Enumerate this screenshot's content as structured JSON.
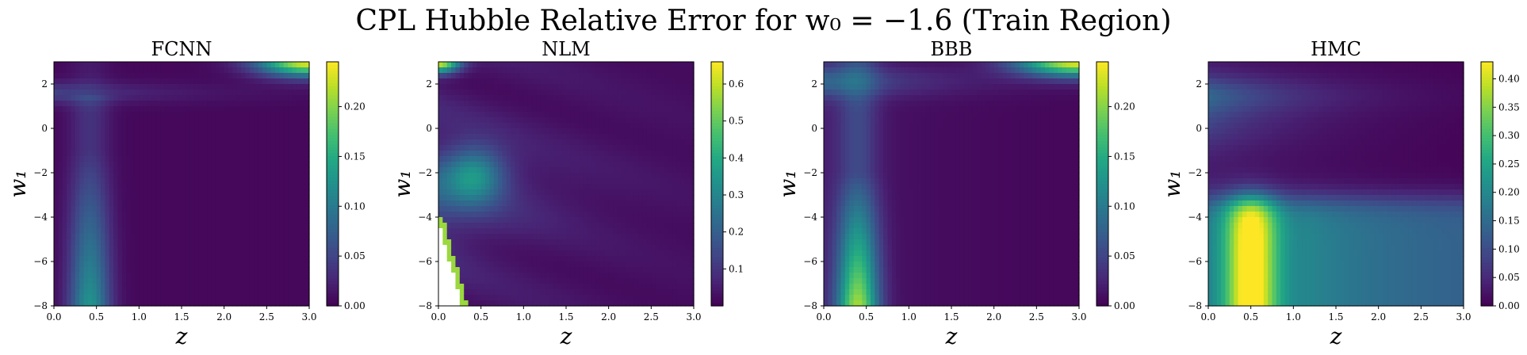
{
  "figure": {
    "title": "CPL Hubble Relative Error for w₀ = −1.6 (Train Region)"
  },
  "colormap": {
    "name": "viridis",
    "stops": [
      "#440154",
      "#482475",
      "#414487",
      "#355f8d",
      "#2a788e",
      "#21918c",
      "#22a884",
      "#44bf70",
      "#7ad151",
      "#bddf26",
      "#fde725"
    ]
  },
  "chart_data": [
    {
      "type": "heatmap",
      "title": "FCNN",
      "xlabel": "z",
      "ylabel": "w₁",
      "xlim": [
        0.0,
        3.0
      ],
      "ylim": [
        -8,
        3
      ],
      "xticks": [
        "0.0",
        "0.5",
        "1.0",
        "1.5",
        "2.0",
        "2.5",
        "3.0"
      ],
      "yticks": [
        "2",
        "0",
        "−2",
        "−4",
        "−6",
        "−8"
      ],
      "colorbar": {
        "min": 0.0,
        "max": 0.245,
        "ticks": [
          "0.00",
          "0.05",
          "0.10",
          "0.15",
          "0.20"
        ]
      },
      "features": "blue ridge near z 0.4–0.5 for low w₁ (values ~0.10–0.13 near w₁=−8); yellow peak ~0.24 at top-right (z≈3, w₁≈3)"
    },
    {
      "type": "heatmap",
      "title": "NLM",
      "xlabel": "z",
      "ylabel": "w₁",
      "xlim": [
        0.0,
        3.0
      ],
      "ylim": [
        -8,
        3
      ],
      "xticks": [
        "0.0",
        "0.5",
        "1.0",
        "1.5",
        "2.0",
        "2.5",
        "3.0"
      ],
      "yticks": [
        "2",
        "0",
        "−2",
        "−4",
        "−6",
        "−8"
      ],
      "colorbar": {
        "min": 0.0,
        "max": 0.66,
        "ticks": [
          "0.1",
          "0.2",
          "0.3",
          "0.4",
          "0.5",
          "0.6"
        ]
      },
      "features": "yellow ~0.65 at top-left (z≈0, w₁≈3); teal blob ~0.3 near z≈0.4, w₁≈−2; missing (white) region at low z, w₁<−4 with green edge"
    },
    {
      "type": "heatmap",
      "title": "BBB",
      "xlabel": "z",
      "ylabel": "w₁",
      "xlim": [
        0.0,
        3.0
      ],
      "ylim": [
        -8,
        3
      ],
      "xticks": [
        "0.0",
        "0.5",
        "1.0",
        "1.5",
        "2.0",
        "2.5",
        "3.0"
      ],
      "yticks": [
        "2",
        "0",
        "−2",
        "−4",
        "−6",
        "−8"
      ],
      "colorbar": {
        "min": 0.0,
        "max": 0.245,
        "ticks": [
          "0.00",
          "0.05",
          "0.10",
          "0.15",
          "0.20"
        ]
      },
      "features": "yellow-green ~0.2 near z≈0.4, w₁≈−8; yellow ~0.24 at top-right; teal band near w₁≈2 at low z"
    },
    {
      "type": "heatmap",
      "title": "HMC",
      "xlabel": "z",
      "ylabel": "w₁",
      "xlim": [
        0.0,
        3.0
      ],
      "ylim": [
        -8,
        3
      ],
      "xticks": [
        "0.0",
        "0.5",
        "1.0",
        "1.5",
        "2.0",
        "2.5",
        "3.0"
      ],
      "yticks": [
        "2",
        "0",
        "−2",
        "−4",
        "−6",
        "−8"
      ],
      "colorbar": {
        "min": 0.0,
        "max": 0.43,
        "ticks": [
          "0.00",
          "0.05",
          "0.10",
          "0.15",
          "0.20",
          "0.25",
          "0.30",
          "0.35",
          "0.40"
        ]
      },
      "features": "bright yellow ~0.42 around z≈0.5 for w₁<−3; broad teal-green region for w₁<−3; dark streaks near w₁≈−1 and −2"
    }
  ]
}
